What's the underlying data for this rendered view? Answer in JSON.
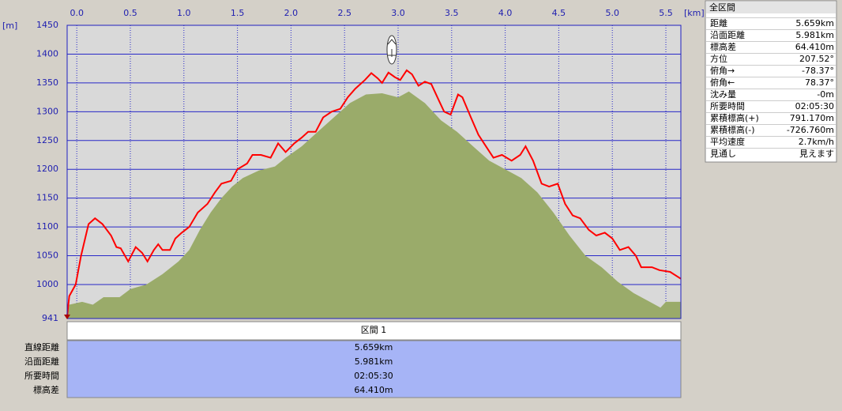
{
  "chart_data": {
    "type": "line",
    "x_unit": "[km]",
    "y_unit": "[m]",
    "xlim": [
      -0.09,
      5.64
    ],
    "ylim": [
      941,
      1450
    ],
    "xticks": [
      {
        "value": 0,
        "label": "0.0"
      },
      0.5,
      {
        "value": 1,
        "label": "1.0"
      },
      1.5,
      {
        "value": 2,
        "label": "2.0"
      },
      2.5,
      {
        "value": 3,
        "label": "3.0"
      },
      3.5,
      {
        "value": 4,
        "label": "4.0"
      },
      4.5,
      {
        "value": 5,
        "label": "5.0"
      },
      5.5
    ],
    "yticks": [
      941,
      1000,
      1050,
      1100,
      1150,
      1200,
      1250,
      1300,
      1350,
      1400,
      1450
    ],
    "grid": true,
    "series": [
      {
        "style": "area",
        "color": "#9aab6a",
        "x": [
          -0.09,
          -0.07,
          0.05,
          0.15,
          0.25,
          0.4,
          0.5,
          0.65,
          0.8,
          0.95,
          1.05,
          1.15,
          1.25,
          1.35,
          1.45,
          1.55,
          1.7,
          1.85,
          1.95,
          2.1,
          2.25,
          2.4,
          2.55,
          2.7,
          2.85,
          3.0,
          3.1,
          3.25,
          3.4,
          3.55,
          3.7,
          3.85,
          4.0,
          4.15,
          4.3,
          4.45,
          4.6,
          4.75,
          4.9,
          5.05,
          5.2,
          5.35,
          5.45,
          5.5,
          5.64
        ],
        "values": [
          941,
          965,
          970,
          965,
          978,
          978,
          992,
          1000,
          1018,
          1040,
          1060,
          1095,
          1125,
          1150,
          1170,
          1185,
          1198,
          1205,
          1220,
          1240,
          1265,
          1290,
          1315,
          1330,
          1332,
          1325,
          1335,
          1315,
          1285,
          1265,
          1240,
          1215,
          1200,
          1185,
          1160,
          1125,
          1085,
          1050,
          1030,
          1005,
          985,
          970,
          960,
          970,
          970
        ]
      },
      {
        "style": "line",
        "color": "#ff0000",
        "x": [
          -0.09,
          -0.07,
          -0.01,
          0.04,
          0.11,
          0.17,
          0.24,
          0.32,
          0.37,
          0.41,
          0.48,
          0.55,
          0.61,
          0.66,
          0.72,
          0.76,
          0.8,
          0.87,
          0.92,
          0.98,
          1.05,
          1.13,
          1.22,
          1.29,
          1.35,
          1.44,
          1.5,
          1.59,
          1.64,
          1.72,
          1.81,
          1.88,
          1.95,
          2.03,
          2.1,
          2.16,
          2.23,
          2.3,
          2.38,
          2.46,
          2.53,
          2.6,
          2.69,
          2.75,
          2.81,
          2.85,
          2.91,
          2.97,
          3.02,
          3.08,
          3.13,
          3.19,
          3.25,
          3.31,
          3.38,
          3.43,
          3.49,
          3.56,
          3.6,
          3.68,
          3.75,
          3.82,
          3.89,
          3.97,
          4.06,
          4.14,
          4.19,
          4.26,
          4.34,
          4.41,
          4.49,
          4.56,
          4.63,
          4.7,
          4.78,
          4.85,
          4.93,
          5.0,
          5.07,
          5.15,
          5.22,
          5.27,
          5.37,
          5.44,
          5.54,
          5.64
        ],
        "values": [
          945,
          980,
          1000,
          1050,
          1105,
          1115,
          1105,
          1085,
          1065,
          1063,
          1040,
          1065,
          1055,
          1040,
          1060,
          1070,
          1060,
          1060,
          1080,
          1090,
          1100,
          1125,
          1140,
          1160,
          1175,
          1180,
          1200,
          1210,
          1225,
          1225,
          1220,
          1245,
          1230,
          1245,
          1255,
          1265,
          1265,
          1290,
          1300,
          1305,
          1325,
          1340,
          1355,
          1367,
          1358,
          1350,
          1368,
          1360,
          1355,
          1372,
          1365,
          1345,
          1352,
          1348,
          1320,
          1300,
          1295,
          1330,
          1325,
          1290,
          1260,
          1240,
          1220,
          1225,
          1215,
          1225,
          1240,
          1215,
          1175,
          1170,
          1175,
          1140,
          1120,
          1115,
          1095,
          1085,
          1090,
          1080,
          1060,
          1065,
          1050,
          1030,
          1030,
          1025,
          1022,
          1010
        ]
      }
    ]
  },
  "summary": {
    "title": "全区間",
    "rows": [
      [
        "距離",
        "5.659km"
      ],
      [
        "沿面距離",
        "5.981km"
      ],
      [
        "標高差",
        "64.410m"
      ],
      [
        "方位",
        "207.52°"
      ],
      [
        "俯角→",
        "-78.37°"
      ],
      [
        "俯角←",
        "78.37°"
      ],
      [
        "沈み量",
        "-0m"
      ],
      [
        "所要時間",
        "02:05:30"
      ],
      [
        "累積標高(+)",
        "791.170m"
      ],
      [
        "累積標高(-)",
        "-726.760m"
      ],
      [
        "平均速度",
        "2.7km/h"
      ],
      [
        "見通し",
        "見えます"
      ]
    ]
  },
  "segments": {
    "header": "区間 1",
    "rows": [
      [
        "直線距離",
        "5.659km"
      ],
      [
        "沿面距離",
        "5.981km"
      ],
      [
        "所要時間",
        "02:05:30"
      ],
      [
        "標高差",
        "64.410m"
      ]
    ]
  }
}
